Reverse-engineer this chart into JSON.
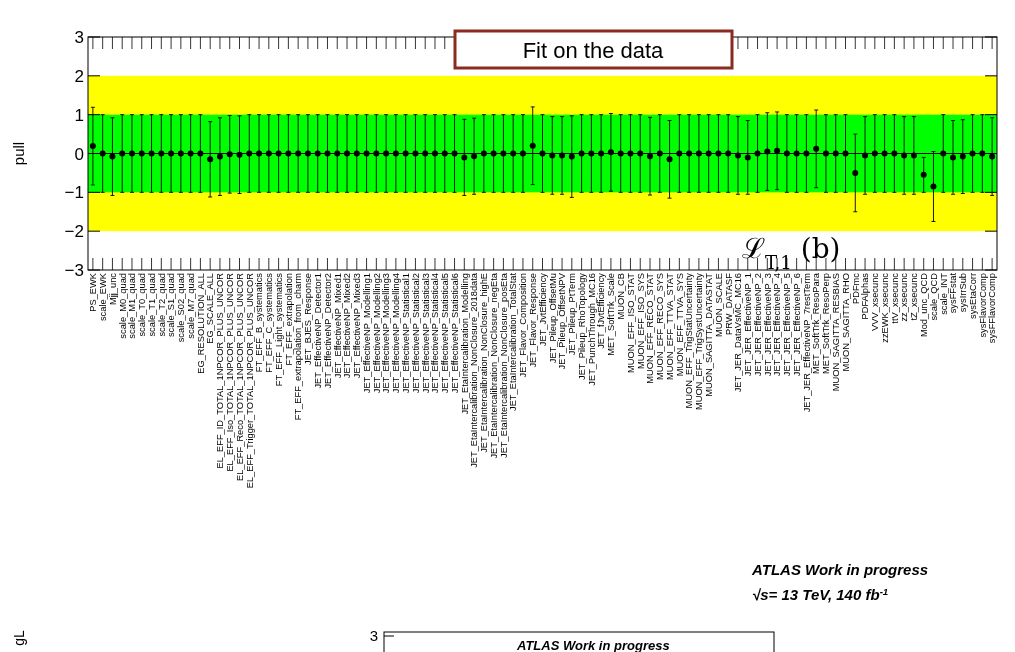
{
  "chart_data": [
    {
      "type": "scatter",
      "ylabel": "pull",
      "categories": [
        "PS_EWK",
        "scale_EWK",
        "Mjj_unc",
        "scale_M0_quad",
        "scale_M1_quad",
        "scale_T0_quad",
        "scale_T1_quad",
        "scale_T2_quad",
        "scale_S1_quad",
        "scale_S02_quad",
        "scale_M7_quad",
        "EG_RESOLUTION_ALL",
        "EG_SCALE_ALL",
        "EL_EFF_ID_TOTAL_1NPCOR_PLUS_UNCOR",
        "EL_EFF_Iso_TOTAL_1NPCOR_PLUS_UNCOR",
        "EL_EFF_Reco_TOTAL_1NPCOR_PLUS_UNCOR",
        "EL_EFF_Trigger_TOTAL_1NPCOR_PLUS_UNCOR",
        "FT_EFF_B_systematics",
        "FT_EFF_C_systematics",
        "FT_EFF_Light_systematics",
        "FT_EFF_extrapolation",
        "FT_EFF_extrapolation_from_charm",
        "JET_BJES_Response",
        "JET_EffectiveNP_Detector1",
        "JET_EffectiveNP_Detector2",
        "JET_EffectiveNP_Mixed1",
        "JET_EffectiveNP_Mixed2",
        "JET_EffectiveNP_Mixed3",
        "JET_EffectiveNP_Modelling1",
        "JET_EffectiveNP_Modelling2",
        "JET_EffectiveNP_Modelling3",
        "JET_EffectiveNP_Modelling4",
        "JET_EffectiveNP_Statistical1",
        "JET_EffectiveNP_Statistical2",
        "JET_EffectiveNP_Statistical3",
        "JET_EffectiveNP_Statistical4",
        "JET_EffectiveNP_Statistical5",
        "JET_EffectiveNP_Statistical6",
        "JET_EtaIntercalibration_Modelling",
        "JET_EtaIntercalibration_NonClosure_2018data",
        "JET_EtaIntercalibration_NonClosure_highE",
        "JET_EtaIntercalibration_NonClosure_negEta",
        "JET_EtaIntercalibration_NonClosure_posEta",
        "JET_EtaIntercalibration_TotalStat",
        "JET_Flavor_Composition",
        "JET_Flavor_Response",
        "JET_JvtEfficiency",
        "JET_Pileup_OffsetMu",
        "JET_Pileup_OffsetNPV",
        "JET_Pileup_PtTerm",
        "JET_Pileup_RhoTopology",
        "JET_PunchThrough_MC16",
        "JET_fJvtEfficiency",
        "MET_SoftTrk_Scale",
        "MUON_CB",
        "MUON_EFF_ISO_STAT",
        "MUON_EFF_ISO_SYS",
        "MUON_EFF_RECO_STAT",
        "MUON_EFF_RECO_SYS",
        "MUON_EFF_TTVA_STAT",
        "MUON_EFF_TTVA_SYS",
        "MUON_EFF_TrigStatUncertainty",
        "MUON_EFF_TrigSystUncertainty",
        "MUON_SAGITTA_DATASTAT",
        "MUON_SCALE",
        "PRW_DATASF",
        "JET_JER_DataVsMC_MC16",
        "JET_JER_EffectiveNP_1",
        "JET_JER_EffectiveNP_2",
        "JET_JER_EffectiveNP_3",
        "JET_JER_EffectiveNP_4",
        "JET_JER_EffectiveNP_5",
        "JET_JER_EffectiveNP_6",
        "JET_JER_EffectiveNP_7restTerm",
        "MET_SoftTrk_ResoPara",
        "MET_SoftTrk_ResoPerp",
        "MUON_SAGITTA_RESBIAS",
        "MUON_SAGITTA_RHO",
        "PDFmc",
        "PDFAlphas",
        "VVV_xsecunc",
        "zzEWK_xsecunc",
        "ttV_xsecunc",
        "zz_xsecunc",
        "tZ_xsecunc",
        "Mod_unc_QCD",
        "scale_QCD",
        "scale_INT",
        "sysFFstat",
        "sysIrrSub",
        "sysEtaCorr",
        "sysFlavorComp",
        "sysFFlavorComp"
      ],
      "values": [
        0.19,
        0,
        -0.08,
        0,
        0,
        0,
        0,
        0,
        0,
        0,
        0,
        0,
        -0.15,
        -0.08,
        -0.02,
        -0.03,
        0,
        0,
        0,
        0,
        0,
        0,
        0,
        0,
        0,
        0,
        0,
        0,
        0,
        0,
        0,
        0,
        0,
        0,
        0,
        0,
        0,
        0,
        -0.1,
        -0.07,
        0,
        0,
        0,
        0,
        0,
        0.2,
        0,
        -0.05,
        -0.05,
        -0.08,
        0,
        0,
        0,
        0.03,
        0,
        0,
        0,
        -0.07,
        0,
        -0.15,
        0,
        0,
        0,
        0,
        0,
        0,
        -0.05,
        -0.1,
        0,
        0.05,
        0.07,
        0,
        0,
        0,
        0.12,
        0,
        0,
        0,
        -0.5,
        -0.05,
        0,
        0,
        0,
        -0.05,
        -0.05,
        -0.55,
        -0.85,
        0,
        -0.1,
        -0.08,
        0,
        0,
        -0.08
      ],
      "errors": [
        1,
        1,
        1,
        1,
        1,
        1,
        1,
        1,
        1,
        1,
        1,
        1,
        0.97,
        1,
        1,
        1,
        1,
        1,
        1,
        1,
        1,
        1,
        1,
        1,
        1,
        1,
        1,
        1,
        1,
        1,
        1,
        1,
        1,
        1,
        1,
        1,
        1,
        1,
        0.98,
        0.98,
        1,
        1,
        1,
        1,
        1,
        1,
        1,
        1,
        1,
        1.05,
        1,
        1,
        1,
        1,
        1,
        1,
        1,
        1,
        1,
        1,
        1,
        1,
        1,
        1,
        1,
        1,
        1,
        0.95,
        1,
        1,
        1,
        1,
        1,
        1,
        1,
        1,
        1,
        1,
        1,
        1,
        1,
        1,
        1,
        1,
        1,
        0.45,
        0.9,
        1,
        0.95,
        0.95,
        1,
        1,
        1
      ],
      "color": "#000000",
      "marker": "circle",
      "ylim": [
        -3,
        3
      ],
      "yticks": [
        {
          "value": -3,
          "label": "−3"
        },
        {
          "value": -2,
          "label": "−2"
        },
        {
          "value": -1,
          "label": "−1"
        },
        0,
        1,
        2,
        3
      ],
      "bands": [
        {
          "axis": "y",
          "from": -2,
          "to": 2,
          "color": "#ffff00"
        },
        {
          "axis": "y",
          "from": -1,
          "to": 1,
          "color": "#00ff00"
        }
      ],
      "ref_lines": [
        {
          "axis": "y",
          "value": 0,
          "color": "#000000"
        }
      ],
      "annotations": [
        "Fit on the data",
        "ℒ$_{T,1}$ (b)",
        "ATLAS Work in progress",
        "√s= 13 TeV, 140 fb$^{-1}$"
      ]
    },
    {
      "type": "other",
      "ylabel": "gL",
      "annotations": [
        "3",
        "ATLAS Work in progress"
      ]
    }
  ]
}
